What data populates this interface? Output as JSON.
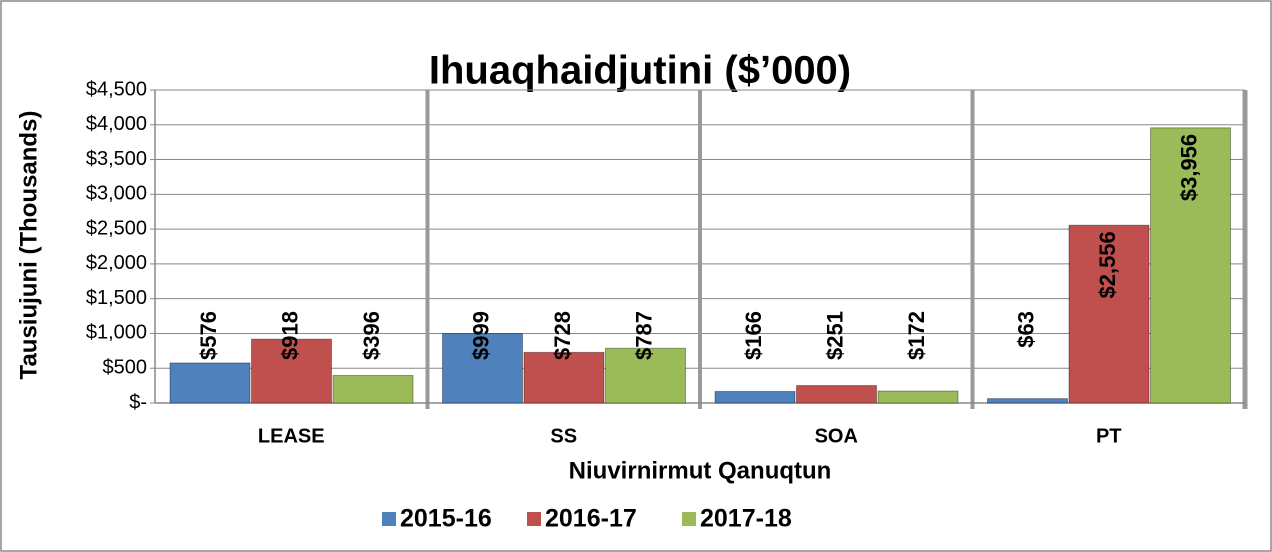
{
  "chart_data": {
    "type": "bar",
    "title": "Ihuaqhaidjutini ($’000)",
    "y_label": "Tausiujuni (Thousands)",
    "x_label": "Niuvirnirmut Qanuqtun",
    "categories": [
      "LEASE",
      "SS",
      "SOA",
      "PT"
    ],
    "series": [
      {
        "name": "2015-16",
        "color": "#4f81bd",
        "values": [
          576,
          999,
          166,
          63
        ],
        "value_labels": [
          "$576",
          "$999",
          "$166",
          "$63"
        ]
      },
      {
        "name": "2016-17",
        "color": "#c0504d",
        "values": [
          918,
          728,
          251,
          2556
        ],
        "value_labels": [
          "$918",
          "$728",
          "$251",
          "$2,556"
        ]
      },
      {
        "name": "2017-18",
        "color": "#9bbb59",
        "values": [
          396,
          787,
          172,
          3956
        ],
        "value_labels": [
          "$396",
          "$787",
          "$172",
          "$3,956"
        ]
      }
    ],
    "ylim": [
      0,
      4500
    ],
    "yticks": [
      {
        "value": 0,
        "label": "$-"
      },
      {
        "value": 500,
        "label": "$500"
      },
      {
        "value": 1000,
        "label": "$1,000"
      },
      {
        "value": 1500,
        "label": "$1,500"
      },
      {
        "value": 2000,
        "label": "$2,000"
      },
      {
        "value": 2500,
        "label": "$2,500"
      },
      {
        "value": 3000,
        "label": "$3,000"
      },
      {
        "value": 3500,
        "label": "$3,500"
      },
      {
        "value": 4000,
        "label": "$4,000"
      },
      {
        "value": 4500,
        "label": "$4,500"
      }
    ],
    "grid": true,
    "legend": "bottom"
  }
}
